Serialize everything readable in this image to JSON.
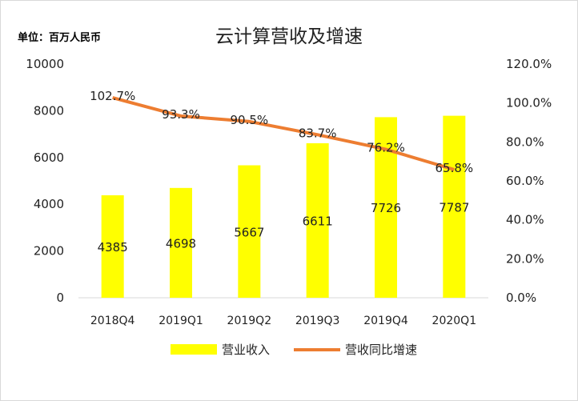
{
  "chart_data": {
    "type": "bar+line",
    "title": "云计算营收及增速",
    "unit_label": "单位：百万人民币",
    "categories": [
      "2018Q4",
      "2019Q1",
      "2019Q2",
      "2019Q3",
      "2019Q4",
      "2020Q1"
    ],
    "series": [
      {
        "name": "营业收入",
        "type": "bar",
        "axis": "left",
        "color": "#ffff00",
        "values": [
          4385,
          4698,
          5667,
          6611,
          7726,
          7787
        ],
        "labels": [
          "4385",
          "4698",
          "5667",
          "6611",
          "7726",
          "7787"
        ]
      },
      {
        "name": "营收同比增速",
        "type": "line",
        "axis": "right",
        "color": "#ed7d31",
        "values": [
          102.7,
          93.3,
          90.5,
          83.7,
          76.2,
          65.8
        ],
        "labels": [
          "102.7%",
          "93.3%",
          "90.5%",
          "83.7%",
          "76.2%",
          "65.8%"
        ]
      }
    ],
    "y_left": {
      "min": 0,
      "max": 10000,
      "ticks": [
        "0",
        "2000",
        "4000",
        "6000",
        "8000",
        "10000"
      ]
    },
    "y_right": {
      "min": 0,
      "max": 120,
      "ticks": [
        "0.0%",
        "20.0%",
        "40.0%",
        "60.0%",
        "80.0%",
        "100.0%",
        "120.0%"
      ]
    },
    "grid": false,
    "legend_position": "bottom"
  }
}
